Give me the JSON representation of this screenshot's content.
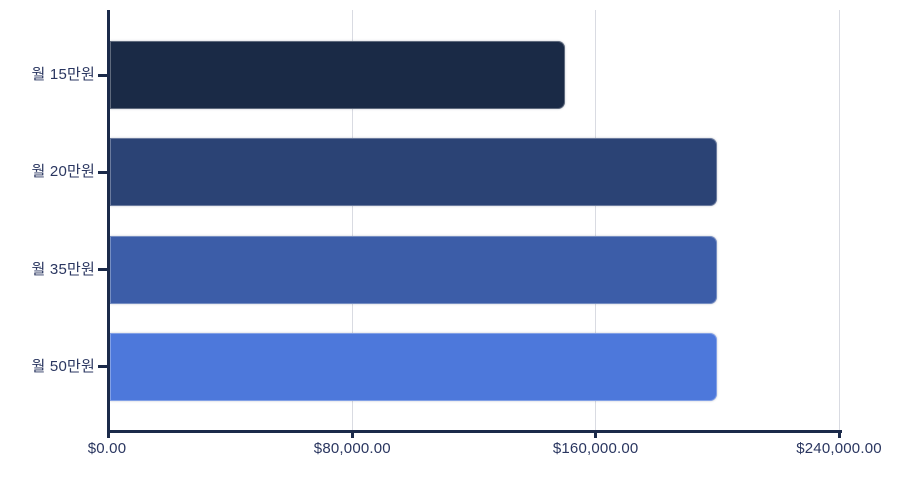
{
  "chart_data": {
    "type": "bar",
    "orientation": "horizontal",
    "title": "",
    "categories": [
      "월 15만원",
      "월 20만원",
      "월 35만원",
      "월 50만원"
    ],
    "values": [
      150000,
      200000,
      200000,
      200000
    ],
    "series": [
      {
        "name": "amount-usd",
        "values": [
          150000,
          200000,
          200000,
          200000
        ]
      }
    ],
    "bar_colors": [
      "#1A2A46",
      "#2B4375",
      "#3C5DA8",
      "#4D78DB"
    ],
    "xlim": [
      0,
      240000
    ],
    "x_ticks": [
      {
        "value": 0,
        "label": "$0.00"
      },
      {
        "value": 80000,
        "label": "$80,000.00"
      },
      {
        "value": 160000,
        "label": "$160,000.00"
      },
      {
        "value": 240000,
        "label": "$240,000.00"
      }
    ],
    "xlabel": "",
    "ylabel": "",
    "grid": "vertical-gridlines-only",
    "legend": "none",
    "style": {
      "background": "#FFFFFF",
      "axis_color": "#1B2A4A",
      "tick_label_color": "#2A3660",
      "gridline_color": "#D9DBE2"
    }
  }
}
